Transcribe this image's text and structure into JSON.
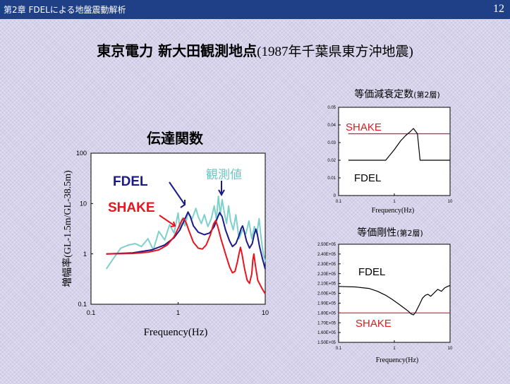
{
  "header": {
    "title": "第2章 FDELによる地盤震動解析",
    "page_number": "12"
  },
  "slide_title": {
    "main": "東京電力 新大田観測地点",
    "paren": "(1987年千葉県東方沖地震)"
  },
  "colors": {
    "header_bg": "#1f3f86",
    "fdel": "#1a1a8c",
    "shake": "#e8141e",
    "observed": "#7fd0cc",
    "black": "#000000"
  },
  "chart_data": [
    {
      "id": "transfer",
      "type": "line",
      "title": "伝達関数",
      "xlabel": "Frequency(Hz)",
      "ylabel": "増幅率(GL-1.5m/GL-38.5m)",
      "xscale": "log",
      "yscale": "log",
      "xlim": [
        0.1,
        10
      ],
      "ylim": [
        0.1,
        100
      ],
      "xticks": [
        "0.1",
        "1",
        "10"
      ],
      "yticks": [
        "0.1",
        "1",
        "10",
        "100"
      ],
      "labels": {
        "fdel": "FDEL",
        "shake": "SHAKE",
        "observed": "観測値"
      },
      "series": [
        {
          "name": "観測値",
          "color": "#7fd0cc",
          "points": [
            [
              0.15,
              0.5
            ],
            [
              0.18,
              0.8
            ],
            [
              0.22,
              1.3
            ],
            [
              0.27,
              1.5
            ],
            [
              0.32,
              1.6
            ],
            [
              0.38,
              1.4
            ],
            [
              0.45,
              2.0
            ],
            [
              0.52,
              1.2
            ],
            [
              0.6,
              2.8
            ],
            [
              0.7,
              1.9
            ],
            [
              0.8,
              3.8
            ],
            [
              0.9,
              2.6
            ],
            [
              1.0,
              6.5
            ],
            [
              1.05,
              3.0
            ],
            [
              1.12,
              5.2
            ],
            [
              1.2,
              3.6
            ],
            [
              1.3,
              6.5
            ],
            [
              1.45,
              5.0
            ],
            [
              1.6,
              8.0
            ],
            [
              1.7,
              5.5
            ],
            [
              1.85,
              4.0
            ],
            [
              2.0,
              6.0
            ],
            [
              2.2,
              3.5
            ],
            [
              2.4,
              5.0
            ],
            [
              2.6,
              9.0
            ],
            [
              2.75,
              4.8
            ],
            [
              2.9,
              14.0
            ],
            [
              3.05,
              6.0
            ],
            [
              3.2,
              12.0
            ],
            [
              3.4,
              6.5
            ],
            [
              3.6,
              4.0
            ],
            [
              3.8,
              9.0
            ],
            [
              4.0,
              4.5
            ],
            [
              4.3,
              3.0
            ],
            [
              4.6,
              6.0
            ],
            [
              5.0,
              2.0
            ],
            [
              5.5,
              3.0
            ],
            [
              6.0,
              2.5
            ],
            [
              6.5,
              4.5
            ],
            [
              7.0,
              2.0
            ],
            [
              7.5,
              3.5
            ],
            [
              8.0,
              2.5
            ],
            [
              8.5,
              5.0
            ],
            [
              9.0,
              2.0
            ],
            [
              9.5,
              1.0
            ],
            [
              10.0,
              0.7
            ]
          ]
        },
        {
          "name": "FDEL",
          "color": "#1a1a8c",
          "points": [
            [
              0.15,
              1.0
            ],
            [
              0.3,
              1.05
            ],
            [
              0.5,
              1.2
            ],
            [
              0.7,
              1.5
            ],
            [
              0.9,
              2.1
            ],
            [
              1.05,
              3.0
            ],
            [
              1.2,
              5.0
            ],
            [
              1.3,
              6.8
            ],
            [
              1.38,
              5.5
            ],
            [
              1.5,
              3.6
            ],
            [
              1.7,
              2.7
            ],
            [
              2.0,
              2.4
            ],
            [
              2.3,
              2.6
            ],
            [
              2.6,
              3.5
            ],
            [
              2.8,
              5.0
            ],
            [
              3.0,
              6.6
            ],
            [
              3.2,
              5.5
            ],
            [
              3.5,
              3.0
            ],
            [
              3.9,
              1.8
            ],
            [
              4.2,
              1.4
            ],
            [
              4.6,
              1.6
            ],
            [
              5.0,
              2.3
            ],
            [
              5.3,
              3.2
            ],
            [
              5.5,
              3.6
            ],
            [
              5.7,
              2.9
            ],
            [
              6.1,
              1.8
            ],
            [
              6.6,
              1.3
            ],
            [
              7.1,
              1.6
            ],
            [
              7.5,
              2.5
            ],
            [
              7.8,
              3.1
            ],
            [
              8.1,
              2.5
            ],
            [
              8.6,
              1.4
            ],
            [
              9.3,
              0.8
            ],
            [
              10.0,
              0.5
            ]
          ]
        },
        {
          "name": "SHAKE",
          "color": "#e8141e",
          "points": [
            [
              0.15,
              1.0
            ],
            [
              0.3,
              1.02
            ],
            [
              0.45,
              1.08
            ],
            [
              0.6,
              1.2
            ],
            [
              0.75,
              1.5
            ],
            [
              0.9,
              2.2
            ],
            [
              1.0,
              3.2
            ],
            [
              1.1,
              4.6
            ],
            [
              1.16,
              5.1
            ],
            [
              1.24,
              4.1
            ],
            [
              1.35,
              2.7
            ],
            [
              1.5,
              1.7
            ],
            [
              1.7,
              1.3
            ],
            [
              1.9,
              1.25
            ],
            [
              2.1,
              1.5
            ],
            [
              2.35,
              2.4
            ],
            [
              2.55,
              3.9
            ],
            [
              2.7,
              4.6
            ],
            [
              2.85,
              3.5
            ],
            [
              3.1,
              2.0
            ],
            [
              3.5,
              1.0
            ],
            [
              3.9,
              0.55
            ],
            [
              4.2,
              0.42
            ],
            [
              4.5,
              0.45
            ],
            [
              4.8,
              0.7
            ],
            [
              5.0,
              1.0
            ],
            [
              5.2,
              1.35
            ],
            [
              5.4,
              1.0
            ],
            [
              5.8,
              0.5
            ],
            [
              6.2,
              0.3
            ],
            [
              6.6,
              0.26
            ],
            [
              7.0,
              0.4
            ],
            [
              7.2,
              0.75
            ],
            [
              7.4,
              1.0
            ],
            [
              7.7,
              0.6
            ],
            [
              8.2,
              0.3
            ],
            [
              9.0,
              0.22
            ],
            [
              10.0,
              0.16
            ]
          ]
        }
      ]
    },
    {
      "id": "damping",
      "type": "line",
      "title": "等価減衰定数",
      "title_suffix": "(第2層)",
      "xlabel": "Frequency(Hz)",
      "xscale": "log",
      "xlim": [
        0.1,
        10
      ],
      "ylim": [
        0,
        0.05
      ],
      "xticks": [
        "0.1",
        "1",
        "10"
      ],
      "yticks": [
        "0",
        "0.01",
        "0.02",
        "0.03",
        "0.04",
        "0.05"
      ],
      "labels": {
        "shake": "SHAKE",
        "fdel": "FDEL"
      },
      "series": [
        {
          "name": "SHAKE",
          "color": "#e8141e",
          "points": [
            [
              0.15,
              0.035
            ],
            [
              10,
              0.035
            ]
          ]
        },
        {
          "name": "FDEL",
          "color": "#000000",
          "points": [
            [
              0.15,
              0.02
            ],
            [
              0.7,
              0.02
            ],
            [
              1.0,
              0.026
            ],
            [
              1.3,
              0.031
            ],
            [
              1.6,
              0.034
            ],
            [
              1.9,
              0.036
            ],
            [
              2.2,
              0.038
            ],
            [
              2.6,
              0.035
            ],
            [
              2.9,
              0.02
            ],
            [
              10,
              0.02
            ]
          ]
        }
      ]
    },
    {
      "id": "stiffness",
      "type": "line",
      "title": "等価剛性",
      "title_suffix": "(第2層)",
      "xlabel": "Frequency(Hz)",
      "xscale": "log",
      "xlim": [
        0.1,
        10
      ],
      "ylim": [
        150000,
        250000
      ],
      "xticks": [
        "0.1",
        "1",
        "10"
      ],
      "yticks": [
        "1.50E+05",
        "1.60E+05",
        "1.70E+05",
        "1.80E+05",
        "1.90E+05",
        "2.00E+05",
        "2.10E+05",
        "2.20E+05",
        "2.30E+05",
        "2.40E+05",
        "2.50E+05"
      ],
      "labels": {
        "fdel": "FDEL",
        "shake": "SHAKE"
      },
      "series": [
        {
          "name": "SHAKE",
          "color": "#e8141e",
          "points": [
            [
              0.1,
              180000
            ],
            [
              10,
              180000
            ]
          ]
        },
        {
          "name": "FDEL",
          "color": "#000000",
          "points": [
            [
              0.1,
              207000
            ],
            [
              0.2,
              206500
            ],
            [
              0.35,
              205000
            ],
            [
              0.5,
              202000
            ],
            [
              0.7,
              198000
            ],
            [
              0.9,
              194000
            ],
            [
              1.2,
              189000
            ],
            [
              1.5,
              185000
            ],
            [
              1.8,
              181500
            ],
            [
              2.0,
              179000
            ],
            [
              2.2,
              178000
            ],
            [
              2.4,
              180500
            ],
            [
              2.8,
              188000
            ],
            [
              3.2,
              195000
            ],
            [
              3.6,
              198000
            ],
            [
              4.0,
              199000
            ],
            [
              4.5,
              197000
            ],
            [
              5.0,
              199500
            ],
            [
              6.0,
              204000
            ],
            [
              7.0,
              202000
            ],
            [
              8.0,
              205500
            ],
            [
              9.0,
              207000
            ],
            [
              10,
              208000
            ]
          ]
        }
      ]
    }
  ]
}
